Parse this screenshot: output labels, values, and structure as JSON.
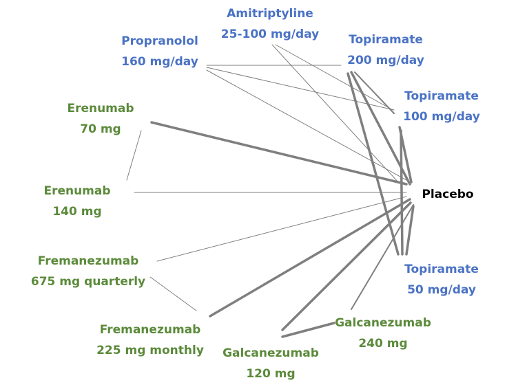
{
  "nodes": [
    {
      "lines": [
        "Amitriptyline",
        "25-100 mg/day"
      ]
    },
    {
      "lines": [
        "Propranolol",
        "160 mg/day"
      ]
    },
    {
      "lines": [
        "Topiramate",
        "200 mg/day"
      ]
    },
    {
      "lines": [
        "Topiramate",
        "100 mg/day"
      ]
    },
    {
      "lines": [
        "Erenumab",
        "70 mg"
      ]
    },
    {
      "lines": [
        "Placebo"
      ]
    },
    {
      "lines": [
        "Erenumab",
        "140 mg"
      ]
    },
    {
      "lines": [
        "Fremanezumab",
        "675 mg quarterly"
      ]
    },
    {
      "lines": [
        "Topiramate",
        "50 mg/day"
      ]
    },
    {
      "lines": [
        "Fremanezumab",
        "225 mg monthly"
      ]
    },
    {
      "lines": [
        "Galcanezumab",
        "240 mg"
      ]
    },
    {
      "lines": [
        "Galcanezumab",
        "120 mg"
      ]
    }
  ]
}
